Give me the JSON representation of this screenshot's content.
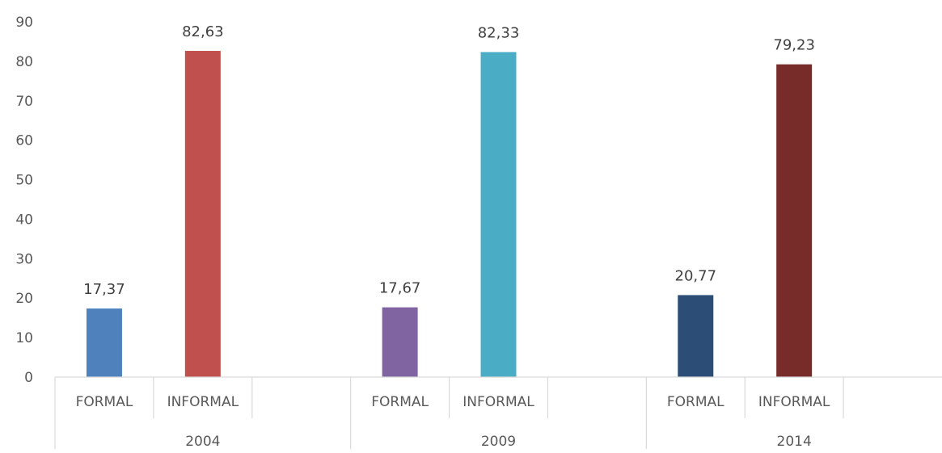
{
  "chart_data": {
    "type": "bar",
    "title": "",
    "xlabel": "",
    "ylabel": "",
    "ylim": [
      0,
      90
    ],
    "y_ticks": [
      0,
      10,
      20,
      30,
      40,
      50,
      60,
      70,
      80,
      90
    ],
    "grid": false,
    "legend": "none",
    "decimal_separator": ",",
    "groups": [
      {
        "label": "2004",
        "bars": [
          {
            "category": "FORMAL",
            "value": 17.37,
            "label": "17,37",
            "color": "#4F81BD"
          },
          {
            "category": "INFORMAL",
            "value": 82.63,
            "label": "82,63",
            "color": "#C0504D"
          }
        ]
      },
      {
        "label": "2009",
        "bars": [
          {
            "category": "FORMAL",
            "value": 17.67,
            "label": "17,67",
            "color": "#8064A2"
          },
          {
            "category": "INFORMAL",
            "value": 82.33,
            "label": "82,33",
            "color": "#4BACC6"
          }
        ]
      },
      {
        "label": "2014",
        "bars": [
          {
            "category": "FORMAL",
            "value": 20.77,
            "label": "20,77",
            "color": "#2C4D75"
          },
          {
            "category": "INFORMAL",
            "value": 79.23,
            "label": "79,23",
            "color": "#772C2A"
          }
        ]
      }
    ]
  }
}
